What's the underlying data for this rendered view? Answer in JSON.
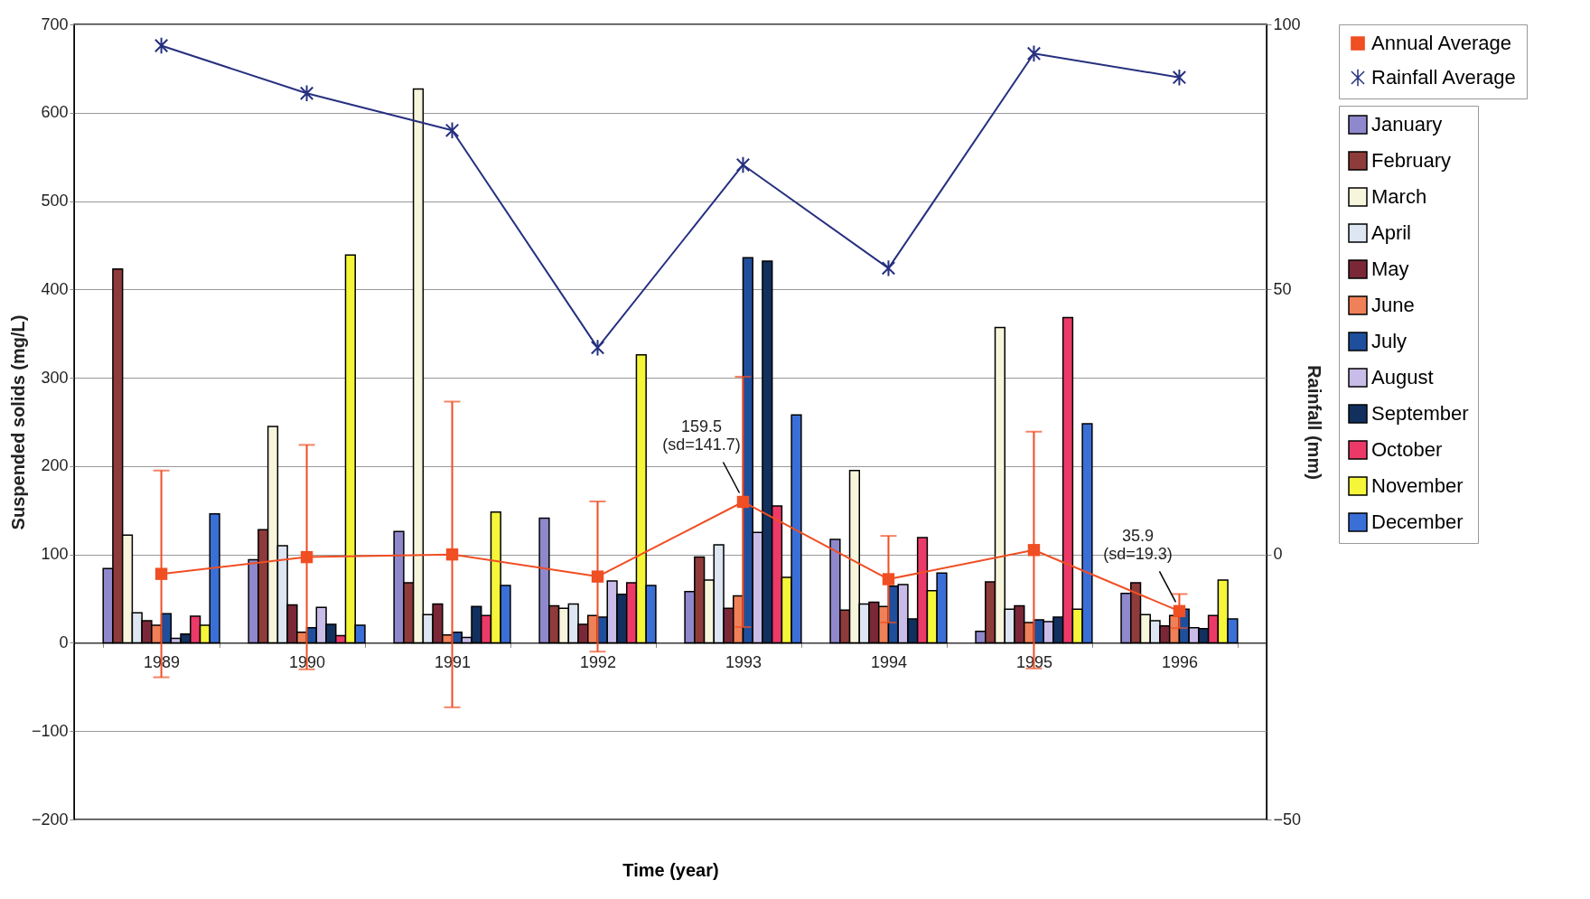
{
  "chart_data": {
    "type": "bar",
    "xlabel": "Time (year)",
    "ylabel": "Suspended solids (mg/L)",
    "y2label": "Rainfall (mm)",
    "categories": [
      "1989",
      "1990",
      "1991",
      "1992",
      "1993",
      "1994",
      "1995",
      "1996"
    ],
    "ylim": [
      -200,
      700
    ],
    "yticks": [
      -200,
      -100,
      0,
      100,
      200,
      300,
      400,
      500,
      600,
      700
    ],
    "y2lim": [
      -50,
      100
    ],
    "y2ticks": [
      -50,
      0,
      50,
      100
    ],
    "grid": "y",
    "legend": "right",
    "series": [
      {
        "name": "January",
        "color": "#8f88cc",
        "values": [
          84,
          94,
          126,
          141,
          58,
          117,
          13,
          56
        ]
      },
      {
        "name": "February",
        "color": "#8e3b3b",
        "values": [
          423,
          128,
          68,
          42,
          97,
          37,
          69,
          68
        ]
      },
      {
        "name": "March",
        "color": "#f7f5dc",
        "values": [
          122,
          245,
          627,
          39,
          71,
          195,
          357,
          32
        ]
      },
      {
        "name": "April",
        "color": "#dde6f2",
        "values": [
          34,
          110,
          32,
          44,
          111,
          44,
          38,
          25
        ]
      },
      {
        "name": "May",
        "color": "#7a2838",
        "values": [
          25,
          43,
          44,
          21,
          39,
          46,
          42,
          19
        ]
      },
      {
        "name": "June",
        "color": "#f08058",
        "values": [
          20,
          12,
          9,
          31,
          53,
          41,
          23,
          31
        ]
      },
      {
        "name": "July",
        "color": "#1f4f9c",
        "values": [
          33,
          17,
          12,
          29,
          436,
          64,
          26,
          38
        ]
      },
      {
        "name": "August",
        "color": "#c9bce8",
        "values": [
          5,
          40,
          6,
          70,
          125,
          66,
          24,
          17
        ]
      },
      {
        "name": "September",
        "color": "#11305e",
        "values": [
          10,
          21,
          41,
          55,
          432,
          27,
          29,
          16
        ]
      },
      {
        "name": "October",
        "color": "#ec3a68",
        "values": [
          30,
          8,
          31,
          68,
          155,
          119,
          368,
          31
        ]
      },
      {
        "name": "November",
        "color": "#f5f53a",
        "values": [
          20,
          439,
          148,
          326,
          74,
          59,
          38,
          71
        ]
      },
      {
        "name": "December",
        "color": "#3b6fd8",
        "values": [
          146,
          20,
          65,
          65,
          258,
          79,
          248,
          27
        ]
      },
      {
        "name": "Annual Average",
        "type": "line",
        "marker": "square",
        "color": "#f04e23",
        "values": [
          78,
          97,
          100,
          75,
          159.5,
          72,
          105,
          35.9
        ],
        "errors": [
          117,
          127,
          173,
          85,
          141.7,
          49,
          134,
          19.3
        ]
      },
      {
        "name": "Rainfall Average",
        "type": "line",
        "axis": "y2",
        "marker": "cross",
        "color": "#26307f",
        "values": [
          96,
          87,
          80,
          39,
          73.5,
          54,
          94.5,
          90
        ]
      }
    ],
    "annotations": [
      {
        "text": "159.5\n(sd=141.7)",
        "x": "1993",
        "y": 159.5
      },
      {
        "text": "35.9\n(sd=19.3)",
        "x": "1996",
        "y": 35.9
      }
    ]
  }
}
